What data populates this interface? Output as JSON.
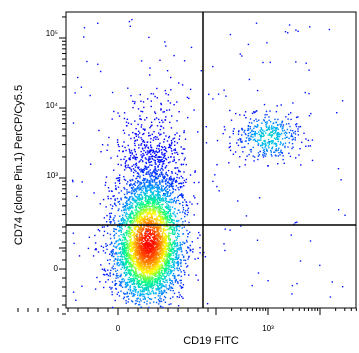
{
  "chart_data": {
    "type": "scatter",
    "subtype": "flow-cytometry-density-dot-plot",
    "title": "",
    "xlabel": "CD19 FITC",
    "ylabel": "CD74 (clone Pin.1) PerCP/Cy5.5",
    "x_scale": "biexponential",
    "y_scale": "biexponential",
    "x_ticks": [
      {
        "value": 0,
        "label": "0"
      },
      {
        "value": 1000,
        "label": "10³"
      }
    ],
    "y_ticks": [
      {
        "value": 0,
        "label": "0"
      },
      {
        "value": 1000,
        "label": "10³"
      },
      {
        "value": 10000,
        "label": "10⁴"
      },
      {
        "value": 100000,
        "label": "10⁵"
      }
    ],
    "xlim": [
      -200,
      100000
    ],
    "ylim": [
      -200,
      250000
    ],
    "quadrant_gates": {
      "x": 150,
      "y": 300
    },
    "populations": [
      {
        "description": "CD19- CD74 low-to-high (dense)",
        "x_center": 30,
        "y_center": 60,
        "relative_size": 0.92
      },
      {
        "description": "CD19+ CD74 high",
        "x_center": 1000,
        "y_center": 4000,
        "relative_size": 0.08
      }
    ],
    "color_scale": [
      "#0000ff",
      "#00b0ff",
      "#00ff80",
      "#ffff00",
      "#ff8000",
      "#ff0000"
    ],
    "grid": false,
    "legend": "none"
  }
}
